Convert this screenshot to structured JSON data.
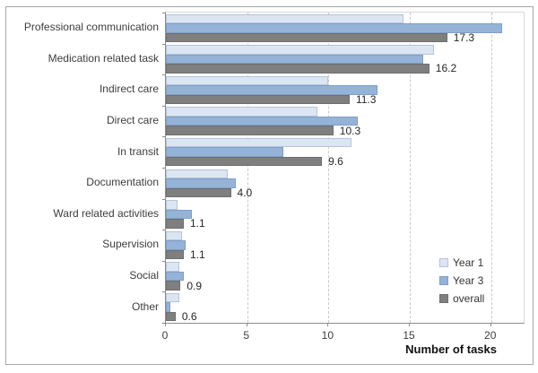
{
  "chart_data": {
    "type": "bar",
    "orientation": "horizontal",
    "title": "",
    "xlabel": "Number of tasks",
    "ylabel": "",
    "xlim": [
      0,
      22
    ],
    "x_ticks": [
      0,
      5,
      10,
      15,
      20
    ],
    "x_tick_labels": [
      "0",
      "5",
      "10",
      "15",
      "20"
    ],
    "grid": "vertical-dashed-major",
    "legend_position": "inside-right",
    "categories": [
      "Professional communication",
      "Medication related task",
      "Indirect care",
      "Direct care",
      "In transit",
      "Documentation",
      "Ward related activities",
      "Supervision",
      "Social",
      "Other"
    ],
    "series": [
      {
        "name": "Year 1",
        "color": "#dce6f2",
        "border_color": "#b3c4da",
        "values": [
          14.6,
          16.5,
          10.0,
          9.3,
          11.4,
          3.8,
          0.7,
          1.0,
          0.8,
          0.8
        ]
      },
      {
        "name": "Year 3",
        "color": "#95b3d7",
        "border_color": "#7e9fc7",
        "values": [
          20.7,
          15.8,
          13.0,
          11.8,
          7.2,
          4.3,
          1.6,
          1.2,
          1.1,
          0.3
        ]
      },
      {
        "name": "overall",
        "color": "#7f7f7f",
        "border_color": "#6e6e6e",
        "values": [
          17.3,
          16.2,
          11.3,
          10.3,
          9.6,
          4.0,
          1.1,
          1.1,
          0.9,
          0.6
        ],
        "data_labels": [
          "17.3",
          "16.2",
          "11.3",
          "10.3",
          "9.6",
          "4.0",
          "1.1",
          "1.1",
          "0.9",
          "0.6"
        ]
      }
    ]
  }
}
